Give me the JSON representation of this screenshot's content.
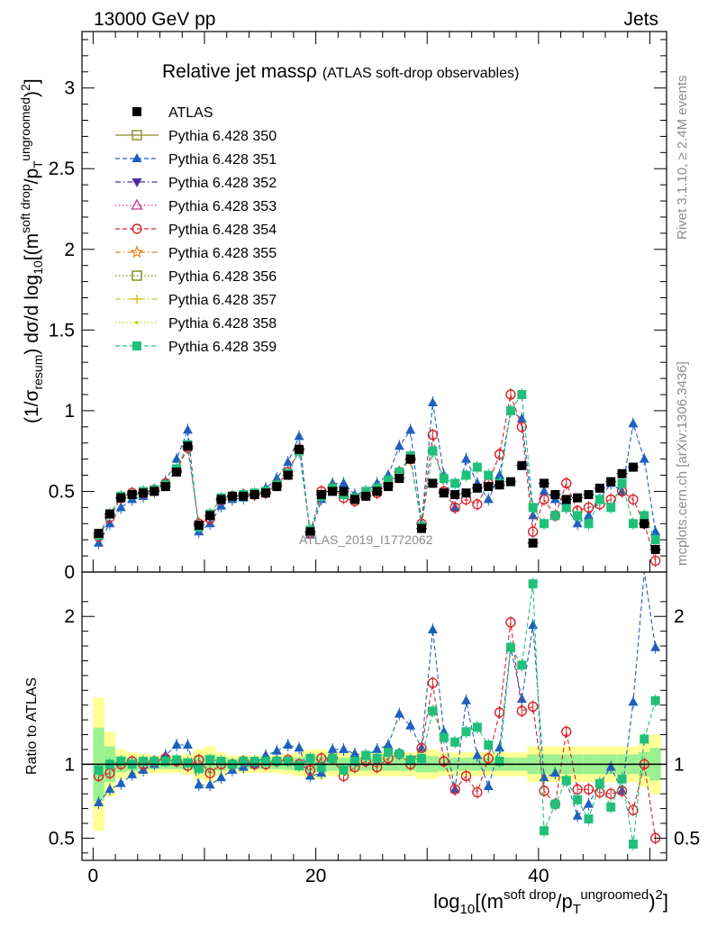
{
  "header": {
    "energy": "13000 GeV pp",
    "category": "Jets"
  },
  "side": {
    "rivet": "Rivet 3.1.10, ≥ 2.4M events",
    "mcplots": "mcplots.cern.ch [arXiv:1306.3436]"
  },
  "main_plot": {
    "title_main": "Relative jet mass",
    "title_rho": "ρ",
    "title_paren": "(ATLAS soft-drop observables)",
    "watermark": "ATLAS_2019_I1772062",
    "ylabel": "(1/σresum) dσ/d log10[(msoft drop/pTungroomed)2]"
  },
  "ratio_plot": {
    "ylabel": "Ratio to ATLAS"
  },
  "xlabel": "log10[(msoft drop/pTungroomed)2]",
  "legend": [
    {
      "label": "ATLAS",
      "color": "#000000",
      "marker": "square-filled",
      "line": "none"
    },
    {
      "label": "Pythia 6.428 350",
      "color": "#8c8c20",
      "marker": "square-open",
      "line": "solid"
    },
    {
      "label": "Pythia 6.428 351",
      "color": "#1f5fbf",
      "marker": "triangle-up-filled",
      "line": "dashed"
    },
    {
      "label": "Pythia 6.428 352",
      "color": "#4b2aa8",
      "marker": "triangle-down-filled",
      "line": "dashdot"
    },
    {
      "label": "Pythia 6.428 353",
      "color": "#c0359c",
      "marker": "triangle-up-open",
      "line": "dotted"
    },
    {
      "label": "Pythia 6.428 354",
      "color": "#d8232a",
      "marker": "circle-open",
      "line": "dashed"
    },
    {
      "label": "Pythia 6.428 355",
      "color": "#f07c1a",
      "marker": "star-open",
      "line": "dashdot"
    },
    {
      "label": "Pythia 6.428 356",
      "color": "#7a8c10",
      "marker": "square-open",
      "line": "dotted"
    },
    {
      "label": "Pythia 6.428 357",
      "color": "#d8c21a",
      "marker": "cross",
      "line": "dashdot"
    },
    {
      "label": "Pythia 6.428 358",
      "color": "#c8d81a",
      "marker": "dot",
      "line": "dotted"
    },
    {
      "label": "Pythia 6.428 359",
      "color": "#20c07a",
      "marker": "square-filled",
      "line": "dashed"
    }
  ],
  "chart_data": [
    {
      "type": "scatter",
      "panel": "main",
      "xlim": [
        -1,
        51.5
      ],
      "ylim": [
        0,
        3.35
      ],
      "xticks": [
        0,
        20,
        40
      ],
      "yticks": [
        0,
        0.5,
        1,
        1.5,
        2,
        2.5,
        3
      ],
      "ytick_labels": [
        "0",
        "0.5",
        "1",
        "1.5",
        "2",
        "2.5",
        "3"
      ],
      "x": [
        0.5,
        1.5,
        2.5,
        3.5,
        4.5,
        5.5,
        6.5,
        7.5,
        8.5,
        9.5,
        10.5,
        11.5,
        12.5,
        13.5,
        14.5,
        15.5,
        16.5,
        17.5,
        18.5,
        19.5,
        20.5,
        21.5,
        22.5,
        23.5,
        24.5,
        25.5,
        26.5,
        27.5,
        28.5,
        29.5,
        30.5,
        31.5,
        32.5,
        33.5,
        34.5,
        35.5,
        36.5,
        37.5,
        38.5,
        39.5,
        40.5,
        41.5,
        42.5,
        43.5,
        44.5,
        45.5,
        46.5,
        47.5,
        48.5,
        49.5,
        50.5
      ],
      "series": [
        {
          "name": "ATLAS",
          "values": [
            0.24,
            0.36,
            0.46,
            0.48,
            0.49,
            0.5,
            0.53,
            0.62,
            0.78,
            0.29,
            0.35,
            0.45,
            0.47,
            0.47,
            0.48,
            0.49,
            0.53,
            0.6,
            0.76,
            0.25,
            0.48,
            0.5,
            0.5,
            0.45,
            0.47,
            0.5,
            0.53,
            0.58,
            0.7,
            0.27,
            0.55,
            0.49,
            0.48,
            0.49,
            0.52,
            0.53,
            0.54,
            0.56,
            0.66,
            0.18,
            0.55,
            0.48,
            0.45,
            0.46,
            0.48,
            0.52,
            0.56,
            0.61,
            0.65,
            0.3,
            0.14
          ]
        },
        {
          "name": "Pythia 6.428 351",
          "values": [
            0.18,
            0.3,
            0.4,
            0.45,
            0.47,
            0.5,
            0.56,
            0.7,
            0.88,
            0.25,
            0.3,
            0.41,
            0.45,
            0.46,
            0.48,
            0.52,
            0.58,
            0.68,
            0.84,
            0.23,
            0.45,
            0.55,
            0.55,
            0.48,
            0.5,
            0.55,
            0.6,
            0.78,
            0.88,
            0.3,
            1.05,
            0.6,
            0.4,
            0.7,
            0.55,
            0.45,
            0.6,
            1.0,
            0.95,
            0.35,
            0.5,
            0.45,
            0.4,
            0.3,
            0.35,
            0.45,
            0.55,
            0.5,
            0.92,
            0.7,
            0.25
          ]
        },
        {
          "name": "Pythia 6.428 354",
          "values": [
            0.22,
            0.34,
            0.46,
            0.49,
            0.49,
            0.51,
            0.55,
            0.63,
            0.77,
            0.3,
            0.33,
            0.45,
            0.47,
            0.48,
            0.48,
            0.49,
            0.54,
            0.62,
            0.76,
            0.24,
            0.5,
            0.52,
            0.46,
            0.44,
            0.48,
            0.49,
            0.55,
            0.62,
            0.7,
            0.3,
            0.85,
            0.5,
            0.4,
            0.45,
            0.42,
            0.55,
            0.73,
            1.1,
            0.9,
            0.25,
            0.45,
            0.35,
            0.55,
            0.38,
            0.4,
            0.42,
            0.45,
            0.5,
            0.45,
            0.3,
            0.07
          ]
        },
        {
          "name": "Pythia 6.428 359",
          "values": [
            0.23,
            0.36,
            0.47,
            0.48,
            0.5,
            0.51,
            0.54,
            0.64,
            0.79,
            0.28,
            0.36,
            0.46,
            0.47,
            0.48,
            0.49,
            0.5,
            0.54,
            0.61,
            0.75,
            0.26,
            0.47,
            0.52,
            0.48,
            0.46,
            0.5,
            0.52,
            0.57,
            0.62,
            0.72,
            0.28,
            0.75,
            0.58,
            0.55,
            0.6,
            0.65,
            0.6,
            0.55,
            1.0,
            1.1,
            0.4,
            0.3,
            0.35,
            0.4,
            0.35,
            0.3,
            0.45,
            0.4,
            0.55,
            0.3,
            0.35,
            0.2
          ]
        }
      ]
    },
    {
      "type": "scatter",
      "panel": "ratio",
      "xlim": [
        -1,
        51.5
      ],
      "ylim": [
        0.35,
        2.3
      ],
      "xticks": [
        0,
        20,
        40
      ],
      "yticks": [
        0.5,
        1,
        2
      ],
      "ytick_labels": [
        "0.5",
        "1",
        "2"
      ],
      "reference_line": 1,
      "series": [
        {
          "name": "Pythia 6.428 351",
          "values": [
            0.74,
            0.83,
            0.87,
            0.93,
            0.96,
            1.0,
            1.06,
            1.13,
            1.13,
            0.86,
            0.86,
            0.91,
            0.96,
            0.98,
            1.0,
            1.06,
            1.09,
            1.13,
            1.11,
            0.92,
            0.94,
            1.1,
            1.1,
            1.07,
            1.06,
            1.1,
            1.13,
            1.34,
            1.26,
            1.11,
            1.91,
            1.22,
            0.83,
            1.43,
            1.06,
            0.85,
            1.11,
            1.79,
            1.44,
            1.94,
            0.91,
            0.94,
            0.89,
            0.65,
            0.73,
            0.87,
            0.98,
            0.82,
            1.42,
            2.33,
            1.79
          ]
        },
        {
          "name": "Pythia 6.428 354",
          "values": [
            0.92,
            0.94,
            1.0,
            1.02,
            1.0,
            1.02,
            1.04,
            1.02,
            0.99,
            1.03,
            0.94,
            1.0,
            1.0,
            1.02,
            1.0,
            1.0,
            1.02,
            1.03,
            1.0,
            0.96,
            1.04,
            1.04,
            0.92,
            0.98,
            1.02,
            0.98,
            1.04,
            1.07,
            1.0,
            1.11,
            1.55,
            1.02,
            0.83,
            0.92,
            0.81,
            1.04,
            1.35,
            1.96,
            1.36,
            1.39,
            0.82,
            0.73,
            1.22,
            0.83,
            0.83,
            0.81,
            0.8,
            0.82,
            0.69,
            1.0,
            0.5
          ]
        },
        {
          "name": "Pythia 6.428 359",
          "values": [
            0.96,
            1.0,
            1.02,
            1.0,
            1.02,
            1.02,
            1.02,
            1.03,
            1.01,
            0.97,
            1.03,
            1.02,
            1.0,
            1.02,
            1.02,
            1.02,
            1.02,
            1.02,
            0.99,
            1.04,
            0.98,
            1.04,
            0.96,
            1.02,
            1.06,
            1.04,
            1.08,
            1.07,
            1.03,
            1.04,
            1.36,
            1.18,
            1.15,
            1.22,
            1.25,
            1.13,
            1.02,
            1.79,
            1.67,
            2.22,
            0.55,
            0.73,
            0.89,
            0.76,
            0.63,
            0.87,
            0.71,
            0.9,
            0.46,
            1.17,
            1.43
          ]
        }
      ]
    }
  ]
}
